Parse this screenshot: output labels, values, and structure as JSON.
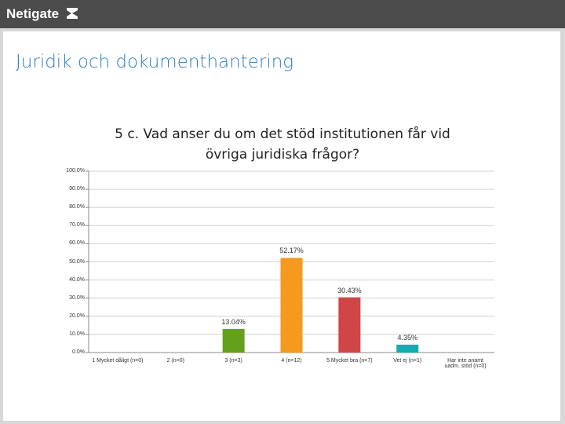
{
  "header": {
    "logo": "Netigate"
  },
  "slide_title": "Juridik och dokumenthantering",
  "chart_data": {
    "type": "bar",
    "title": "5 c. Vad anser du om det stöd institutionen får vid övriga juridiska frågor?",
    "categories": [
      "1 Mycket dåligt (n=0)",
      "2 (n=0)",
      "3 (n=3)",
      "4 (n=12)",
      "5 Mycket bra (n=7)",
      "Vet ej (n=1)",
      "Har inte anamt uadm. stöd (n=0)"
    ],
    "values": [
      0,
      0,
      13.04,
      52.17,
      30.43,
      4.35,
      0
    ],
    "value_labels": [
      null,
      null,
      "13.04%",
      "52.17%",
      "30.43%",
      "4.35%",
      null
    ],
    "colors": [
      null,
      null,
      "#64a01c",
      "#f39a1f",
      "#d04545",
      "#1aa9b0",
      null
    ],
    "ylim": [
      0,
      100
    ],
    "yticks": [
      {
        "value": 0,
        "label": "0.0%"
      },
      {
        "value": 10,
        "label": "10.0%"
      },
      {
        "value": 20,
        "label": "20.0%"
      },
      {
        "value": 30,
        "label": "30.0%"
      },
      {
        "value": 40,
        "label": "40.0%"
      },
      {
        "value": 50,
        "label": "50.0%"
      },
      {
        "value": 60,
        "label": "60.0%"
      },
      {
        "value": 70,
        "label": "70.0%"
      },
      {
        "value": 80,
        "label": "80.0%"
      },
      {
        "value": 90,
        "label": "90.0%"
      },
      {
        "value": 100,
        "label": "100.0%"
      }
    ],
    "grid": true
  }
}
